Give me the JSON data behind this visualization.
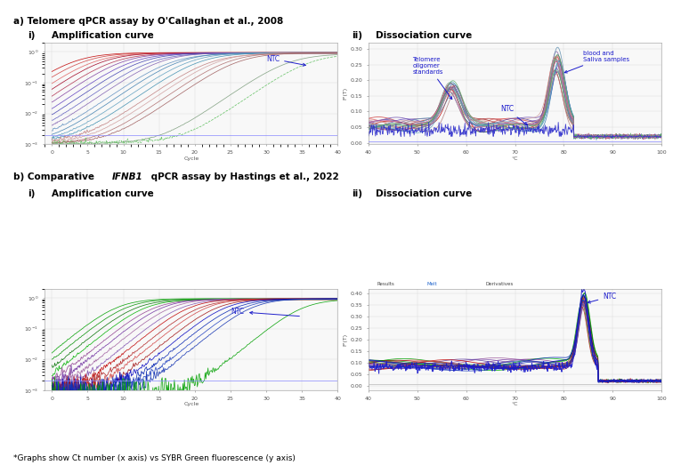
{
  "title_a": "a) Telomere qPCR assay by O'Callaghan et al., 2008",
  "title_b_pre": "b) Comparative ",
  "title_b_italic": "IFNB1",
  "title_b_post": " qPCR assay by Hastings et al., 2022",
  "sub_ai": "i)",
  "sub_ai_text": "Amplification curve",
  "sub_aii": "ii)",
  "sub_aii_text": "Dissociation curve",
  "sub_bi": "i)",
  "sub_bi_text": "Amplification curve",
  "sub_bii": "ii)",
  "sub_bii_text": "Dissociation curve",
  "footnote": "*Graphs show Ct number (x axis) vs SYBR Green fluorescence (y axis)",
  "bg": "#ffffff",
  "grid_color": "#dddddd",
  "threshold_color": "#8888ff"
}
